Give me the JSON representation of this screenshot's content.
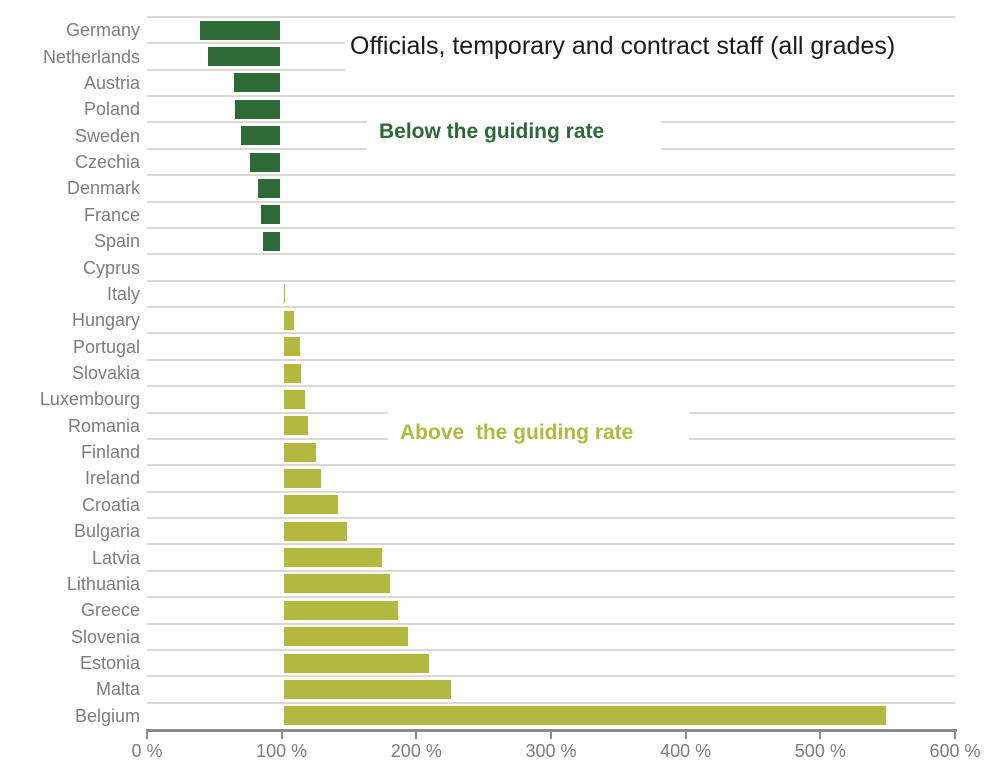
{
  "title": "Officials, temporary and contract staff (all grades)",
  "annotations": {
    "below_label": "Below the guiding rate",
    "above_label": "Above  the guiding rate"
  },
  "colors": {
    "below_bar": "#2d6a38",
    "above_bar": "#b2b93e",
    "below_text": "#2d6a38",
    "above_text": "#b2b93e",
    "country_label_text": "#7d7d7d",
    "gridline": "#d9d9d9",
    "axis": "#8c8c8c",
    "title_text": "#1a1a1a"
  },
  "chart_data": {
    "type": "bar",
    "orientation": "horizontal",
    "title": "Officials, temporary and contract staff (all grades)",
    "unit": "%",
    "anchor_value": 100,
    "xlim": [
      0,
      600
    ],
    "x_tick_step": 100,
    "x_tick_labels": [
      "0 %",
      "100 %",
      "200 %",
      "300 %",
      "400 %",
      "500 %",
      "600 %"
    ],
    "grid": "row-separators-only",
    "legend": "none",
    "groups": {
      "below": {
        "label": "Below the guiding rate",
        "color": "#2d6a38",
        "rule": "value < 100"
      },
      "above": {
        "label": "Above  the guiding rate",
        "color": "#b2b93e",
        "rule": "value > 100"
      }
    },
    "bars_anchored_at": "100 %",
    "categories": [
      "Germany",
      "Netherlands",
      "Austria",
      "Poland",
      "Sweden",
      "Czechia",
      "Denmark",
      "France",
      "Spain",
      "Cyprus",
      "Italy",
      "Hungary",
      "Portugal",
      "Slovakia",
      "Luxembourg",
      "Romania",
      "Finland",
      "Ireland",
      "Croatia",
      "Bulgaria",
      "Latvia",
      "Lithuania",
      "Greece",
      "Slovenia",
      "Estonia",
      "Malta",
      "Belgium"
    ],
    "values": [
      38,
      44,
      63,
      64,
      68,
      75,
      81,
      83,
      85,
      102,
      104,
      111,
      115,
      116,
      119,
      121,
      127,
      131,
      143,
      150,
      176,
      182,
      188,
      195,
      211,
      227,
      550
    ]
  }
}
